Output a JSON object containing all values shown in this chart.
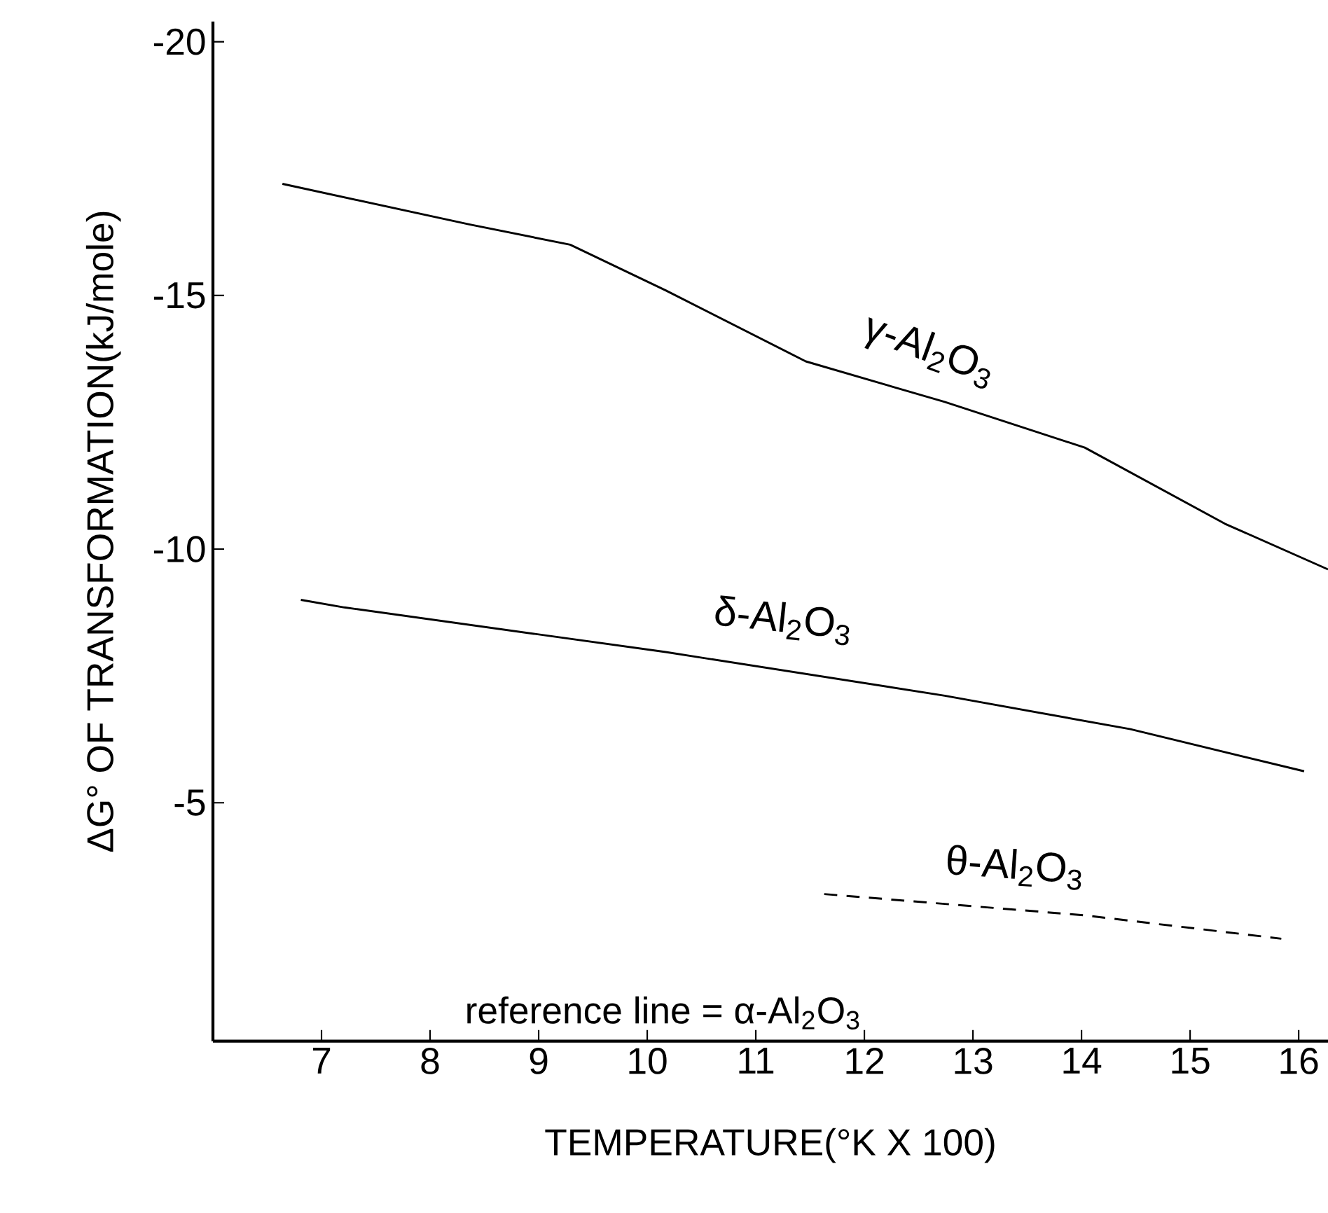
{
  "chart_data": {
    "type": "line",
    "xlabel": "TEMPERATURE(°K X 100)",
    "ylabel": "ΔG° OF TRANSFORMATION(kJ/mole)",
    "xlim": [
      6.0,
      16.27
    ],
    "ylim": [
      -0.3,
      -20.4
    ],
    "xticks": [
      7,
      8,
      9,
      10,
      11,
      12,
      13,
      14,
      15,
      16
    ],
    "yticks": [
      -20,
      -15,
      -10,
      -5
    ],
    "grid": false,
    "marker": "none",
    "series": [
      {
        "name": "γ-Al$_{2}$O$_{3}$",
        "color": "#000000",
        "line_style": "solid",
        "x": [
          6.64,
          8.36,
          9.29,
          10.17,
          11.46,
          12.74,
          14.03,
          15.32,
          16.27
        ],
        "values": [
          -17.2,
          -16.4,
          -16.0,
          -15.1,
          -13.7,
          -12.9,
          -12.0,
          -10.5,
          -9.6
        ]
      },
      {
        "name": "δ-Al$_{2}$O$_{3}$",
        "color": "#000000",
        "line_style": "solid",
        "x": [
          6.81,
          7.21,
          10.17,
          12.74,
          14.45,
          16.05
        ],
        "values": [
          -9.0,
          -8.85,
          -7.97,
          -7.11,
          -6.45,
          -5.62
        ]
      },
      {
        "name": "θ-Al$_{2}$O$_{3}$",
        "color": "#000000",
        "line_style": "dashed",
        "x": [
          11.63,
          14.03,
          15.84
        ],
        "values": [
          -3.2,
          -2.78,
          -2.32
        ]
      }
    ],
    "annotations": [
      "reference line = α-Al$_{2}$O$_{3}$"
    ]
  }
}
